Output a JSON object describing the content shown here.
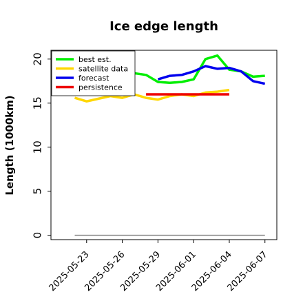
{
  "chart_data": {
    "type": "line",
    "title": "Ice edge length",
    "xlabel": "",
    "ylabel": "Length (1000km)",
    "ylim": [
      -0.5,
      21
    ],
    "yticks": [
      0,
      5,
      10,
      15,
      20
    ],
    "xlim": [
      "2025-05-20",
      "2025-06-08"
    ],
    "xticks": [
      "2025-05-23",
      "2025-05-26",
      "2025-05-29",
      "2025-06-01",
      "2025-06-04",
      "2025-06-07"
    ],
    "highlight_tick": "2025-05-29",
    "highlight_color": "#228b22",
    "grid": false,
    "legend_position": "top-left",
    "baseline": {
      "y": 0,
      "x": [
        "2025-05-22",
        "2025-06-07"
      ],
      "color": "#808080"
    },
    "series": [
      {
        "name": "best est.",
        "color": "#00ee00",
        "x": [
          "2025-05-27",
          "2025-05-28",
          "2025-05-29",
          "2025-05-30",
          "2025-05-31",
          "2025-06-01",
          "2025-06-02",
          "2025-06-03",
          "2025-06-04",
          "2025-06-05",
          "2025-06-06",
          "2025-06-07"
        ],
        "y": [
          18.4,
          18.2,
          17.4,
          17.3,
          17.4,
          17.7,
          20.0,
          20.4,
          18.8,
          18.6,
          18.0,
          18.1
        ]
      },
      {
        "name": "satellite data",
        "color": "#ffd700",
        "x": [
          "2025-05-22",
          "2025-05-23",
          "2025-05-25",
          "2025-05-26",
          "2025-05-27",
          "2025-05-28",
          "2025-05-29",
          "2025-05-30",
          "2025-05-31",
          "2025-06-01",
          "2025-06-02",
          "2025-06-03",
          "2025-06-04"
        ],
        "y": [
          15.6,
          15.2,
          15.8,
          15.6,
          16.0,
          15.6,
          15.4,
          15.8,
          16.0,
          15.8,
          16.2,
          16.3,
          16.5
        ]
      },
      {
        "name": "forecast",
        "color": "#0000ee",
        "x": [
          "2025-05-29",
          "2025-05-30",
          "2025-05-31",
          "2025-06-01",
          "2025-06-02",
          "2025-06-03",
          "2025-06-04",
          "2025-06-05",
          "2025-06-06",
          "2025-06-07"
        ],
        "y": [
          17.7,
          18.1,
          18.2,
          18.6,
          19.2,
          18.9,
          19.0,
          18.6,
          17.5,
          17.2
        ]
      },
      {
        "name": "persistence",
        "color": "#ee0000",
        "x": [
          "2025-05-28",
          "2025-06-04"
        ],
        "y": [
          16.0,
          16.0
        ]
      }
    ]
  }
}
